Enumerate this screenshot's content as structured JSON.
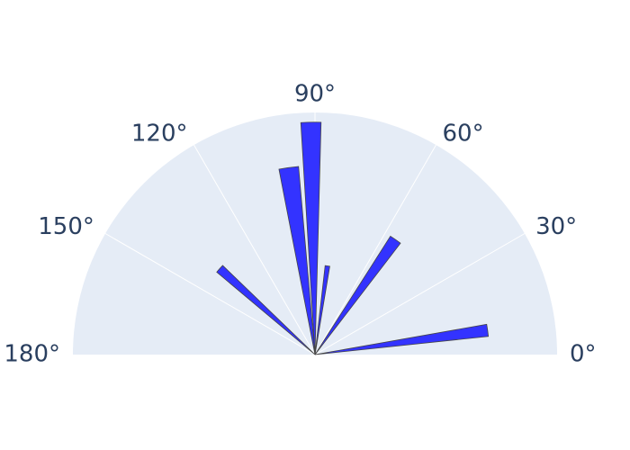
{
  "chart_data": {
    "type": "polar-bar",
    "sector": [
      0,
      180
    ],
    "angular_unit": "degrees",
    "angular_ticks": [
      {
        "value": 0,
        "label": "0°"
      },
      {
        "value": 30,
        "label": "30°"
      },
      {
        "value": 60,
        "label": "60°"
      },
      {
        "value": 90,
        "label": "90°"
      },
      {
        "value": 120,
        "label": "120°"
      },
      {
        "value": 150,
        "label": "150°"
      },
      {
        "value": 180,
        "label": "180°"
      }
    ],
    "radial_range": [
      0,
      1
    ],
    "radial_axis_visible": false,
    "grid": true,
    "series": [
      {
        "color": "#3333ff",
        "line_color": "#444444",
        "bars": [
          {
            "theta": 8,
            "r": 0.72,
            "width": 4
          },
          {
            "theta": 55,
            "r": 0.58,
            "width": 5
          },
          {
            "theta": 82,
            "r": 0.37,
            "width": 3
          },
          {
            "theta": 98,
            "r": 0.78,
            "width": 6
          },
          {
            "theta": 91,
            "r": 0.96,
            "width": 5
          },
          {
            "theta": 138,
            "r": 0.53,
            "width": 4
          }
        ]
      }
    ]
  }
}
